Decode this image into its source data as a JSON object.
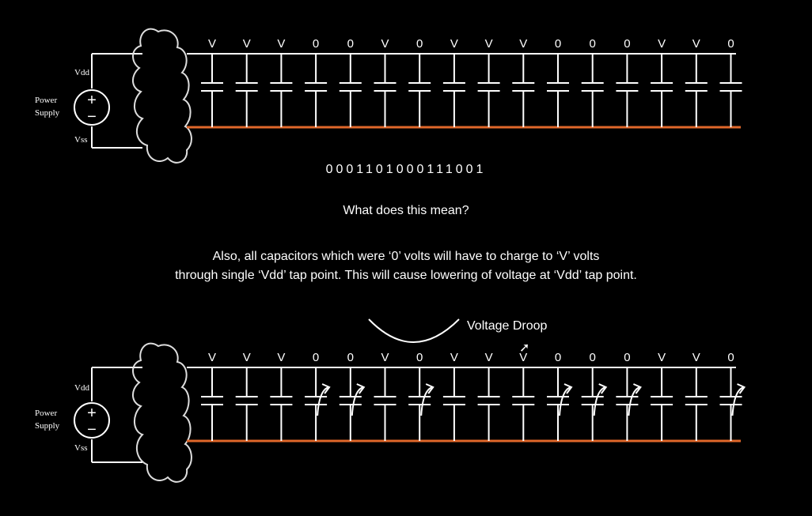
{
  "top_circuit": {
    "vdd_label": "Vdd",
    "vss_label": "Vss",
    "power_label_line1": "Power",
    "power_label_line2": "Supply",
    "plus_sign": "+",
    "minus_sign": "−",
    "capacitor_states": [
      "V",
      "V",
      "V",
      "0",
      "0",
      "V",
      "0",
      "V",
      "V",
      "V",
      "0",
      "0",
      "0",
      "V",
      "V",
      "0"
    ]
  },
  "bottom_circuit": {
    "vdd_label": "Vdd",
    "vss_label": "Vss",
    "power_label_line1": "Power",
    "power_label_line2": "Supply",
    "plus_sign": "+",
    "minus_sign": "−",
    "capacitor_states": [
      "V",
      "V",
      "V",
      "0",
      "0",
      "V",
      "0",
      "V",
      "V",
      "V",
      "0",
      "0",
      "0",
      "V",
      "V",
      "0"
    ]
  },
  "binary_string": "0001101000111001",
  "question": "What does this mean?",
  "note_line1": "Also, all capacitors which were ‘0’ volts will have to charge to ‘V’ volts",
  "note_line2": "through single ‘Vdd’ tap point. This will cause lowering of voltage at ‘Vdd’ tap point.",
  "droop_label": "Voltage Droop",
  "colors": {
    "rail_top": "#ffffff",
    "rail_bottom": "#e0672a",
    "background": "#000000"
  }
}
